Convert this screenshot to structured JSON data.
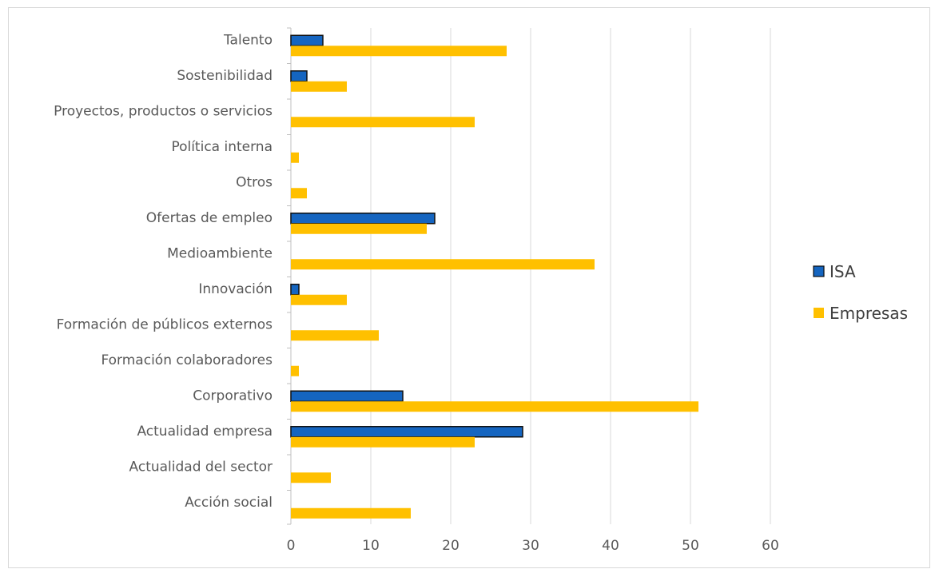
{
  "chart_data": {
    "type": "bar",
    "orientation": "horizontal",
    "title": "",
    "xlabel": "",
    "ylabel": "",
    "xlim": [
      0,
      60
    ],
    "xticks": [
      0,
      10,
      20,
      30,
      40,
      50,
      60
    ],
    "grid": true,
    "legend_position": "right",
    "categories": [
      "Talento",
      "Sostenibilidad",
      "Proyectos, productos o servicios",
      "Política interna",
      "Otros",
      "Ofertas de empleo",
      "Medioambiente",
      "Innovación",
      "Formación de públicos externos",
      "Formación colaboradores",
      "Corporativo",
      "Actualidad empresa",
      "Actualidad del sector",
      "Acción social"
    ],
    "series": [
      {
        "name": "ISA",
        "color": "#1565c0",
        "values": [
          4,
          2,
          0,
          0,
          0,
          18,
          0,
          1,
          0,
          0,
          14,
          29,
          0,
          0
        ]
      },
      {
        "name": "Empresas",
        "color": "#ffc000",
        "values": [
          27,
          7,
          23,
          1,
          2,
          17,
          38,
          7,
          11,
          1,
          51,
          23,
          5,
          15
        ]
      }
    ]
  }
}
